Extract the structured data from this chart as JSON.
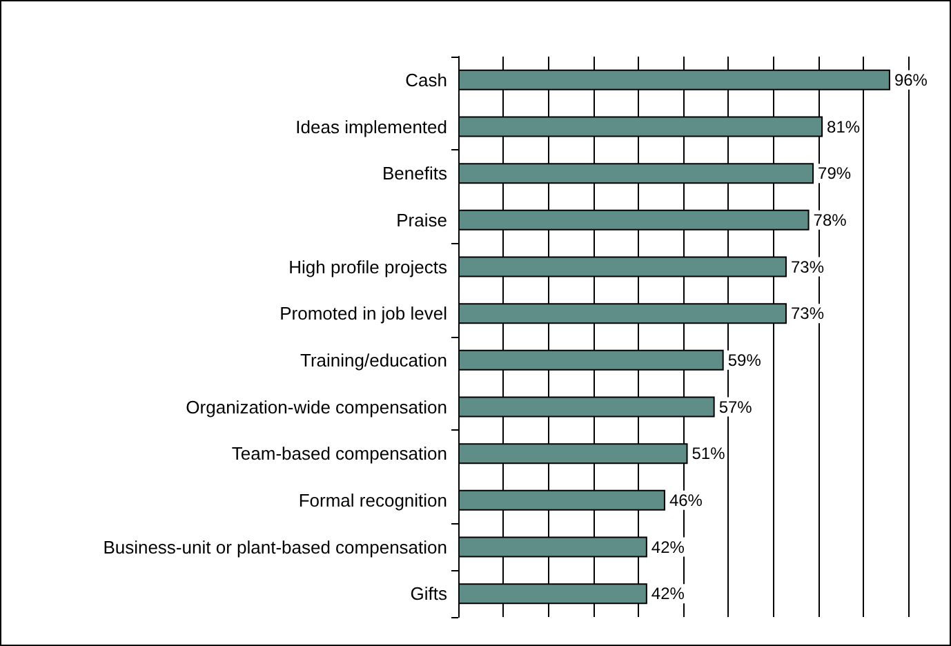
{
  "chart_data": {
    "type": "bar",
    "orientation": "horizontal",
    "categories": [
      "Cash",
      "Ideas implemented",
      "Benefits",
      "Praise",
      "High profile projects",
      "Promoted in job level",
      "Training/education",
      "Organization-wide compensation",
      "Team-based compensation",
      "Formal recognition",
      "Business-unit or plant-based compensation",
      "Gifts"
    ],
    "values": [
      96,
      81,
      79,
      78,
      73,
      73,
      59,
      57,
      51,
      46,
      42,
      42
    ],
    "value_labels": [
      "96%",
      "81%",
      "79%",
      "78%",
      "73%",
      "73%",
      "59%",
      "57%",
      "51%",
      "46%",
      "42%",
      "42%"
    ],
    "color": "#5f8d88",
    "xlim": [
      0,
      100
    ],
    "xticks": [
      {
        "value": 0,
        "label": null
      },
      {
        "value": 10,
        "label": null
      },
      {
        "value": 20,
        "label": null
      },
      {
        "value": 30,
        "label": null
      },
      {
        "value": 40,
        "label": null
      },
      {
        "value": 50,
        "label": null
      },
      {
        "value": 60,
        "label": null
      },
      {
        "value": 70,
        "label": null
      },
      {
        "value": 80,
        "label": null
      },
      {
        "value": 90,
        "label": null
      },
      {
        "value": 100,
        "label": null
      }
    ],
    "grid": "x",
    "tick_labels": "y"
  }
}
